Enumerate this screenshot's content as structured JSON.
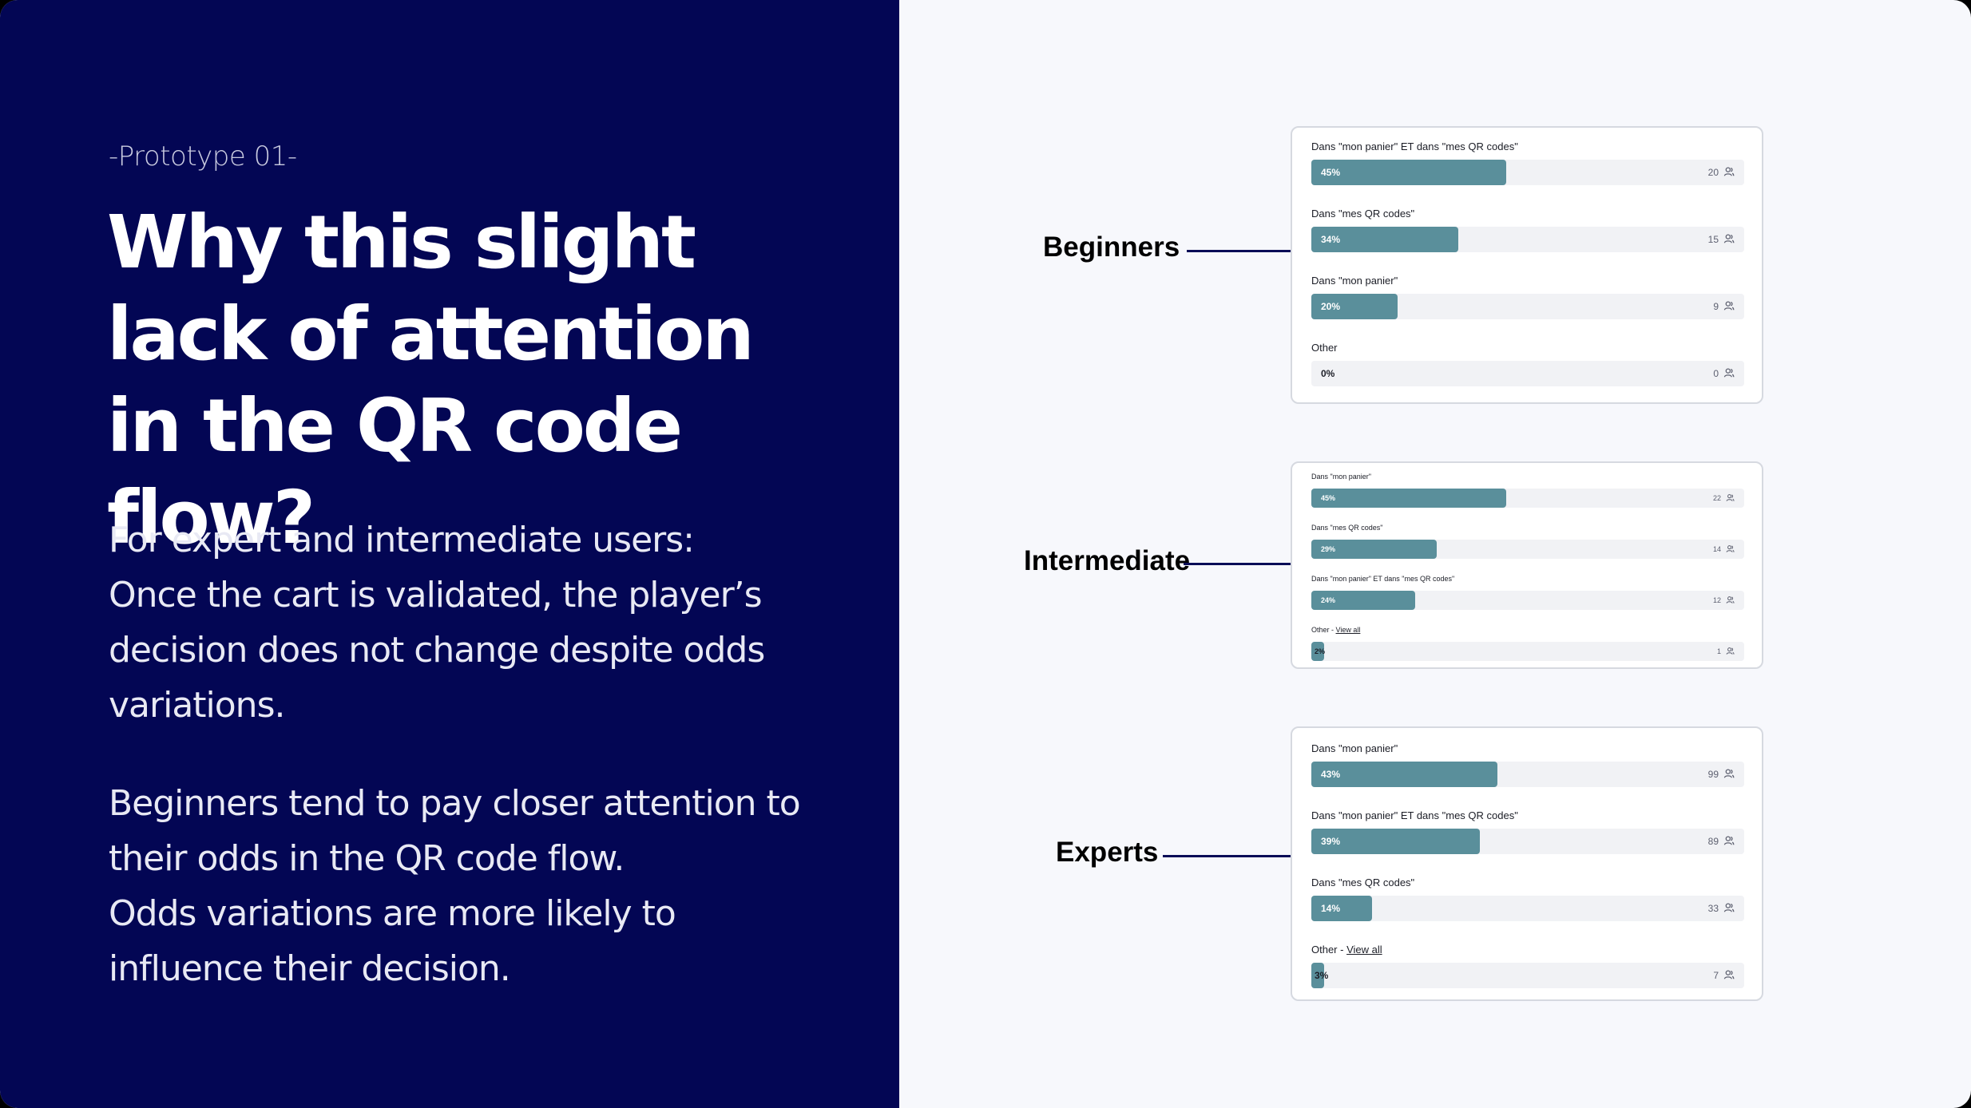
{
  "left": {
    "kicker": "-Prototype 01-",
    "title": "Why this slight lack of attention in the QR code flow?",
    "paragraph1": "For expert and intermediate users:\n Once the cart is validated, the player’s decision does not change despite odds variations.",
    "paragraph2": "Beginners tend to pay closer attention to their odds in the QR code flow.\n Odds variations are more likely to influence their decision."
  },
  "colors": {
    "navy": "#030654",
    "bar": "#5a8f9b",
    "track": "#f1f2f5"
  },
  "chart_data": [
    {
      "type": "bar",
      "group": "Beginners",
      "orientation": "horizontal",
      "categories": [
        "Dans \"mon panier\" ET dans \"mes QR codes\"",
        "Dans \"mes QR codes\"",
        "Dans \"mon panier\"",
        "Other"
      ],
      "category_links": [
        "",
        "",
        "",
        ""
      ],
      "values": [
        45,
        34,
        20,
        0
      ],
      "percent_labels": [
        "45%",
        "34%",
        "20%",
        "0%"
      ],
      "counts": [
        "20",
        "15",
        "9",
        "0"
      ],
      "xlim": [
        0,
        100
      ]
    },
    {
      "type": "bar",
      "group": "Intermediate",
      "orientation": "horizontal",
      "categories": [
        "Dans \"mon panier\"",
        "Dans \"mes QR codes\"",
        "Dans \"mon panier\" ET dans \"mes QR codes\"",
        "Other - "
      ],
      "category_links": [
        "",
        "",
        "",
        "View all"
      ],
      "values": [
        45,
        29,
        24,
        2
      ],
      "percent_labels": [
        "45%",
        "29%",
        "24%",
        "2%"
      ],
      "counts": [
        "22",
        "14",
        "12",
        "1"
      ],
      "xlim": [
        0,
        100
      ]
    },
    {
      "type": "bar",
      "group": "Experts",
      "orientation": "horizontal",
      "categories": [
        "Dans \"mon panier\"",
        "Dans \"mon panier\" ET dans \"mes QR codes\"",
        "Dans \"mes QR codes\"",
        "Other - "
      ],
      "category_links": [
        "",
        "",
        "",
        "View all"
      ],
      "values": [
        43,
        39,
        14,
        3
      ],
      "percent_labels": [
        "43%",
        "39%",
        "14%",
        "3%"
      ],
      "counts": [
        "99",
        "89",
        "33",
        "7"
      ],
      "xlim": [
        0,
        100
      ]
    }
  ]
}
